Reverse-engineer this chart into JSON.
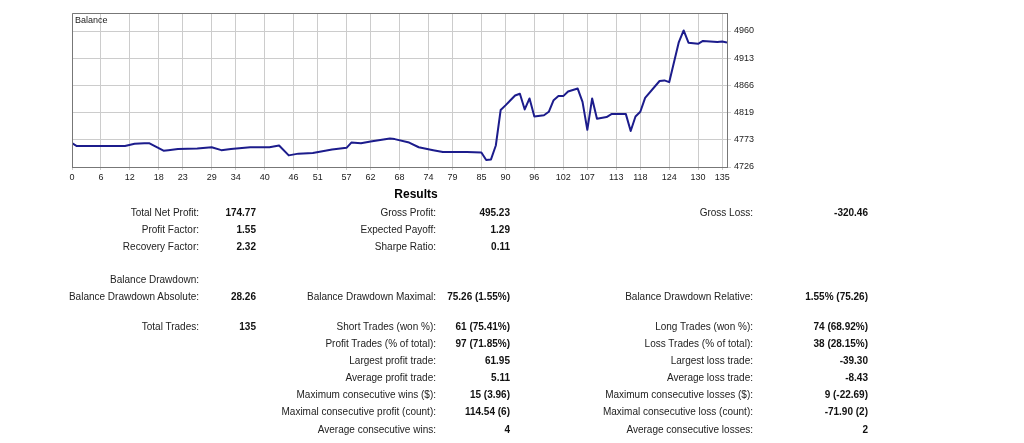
{
  "chart_data": [
    {
      "type": "line",
      "title": "Balance",
      "color": "#1c1c8c",
      "marker": "none",
      "line_style": "solid",
      "grid": true,
      "legend": false,
      "x": [
        0,
        1,
        11,
        13,
        15,
        16,
        19,
        20,
        22,
        26,
        29,
        31,
        33,
        37,
        41,
        43,
        45,
        47,
        50,
        54,
        57,
        58,
        60,
        62,
        66,
        67,
        70,
        72,
        75,
        77,
        82,
        85,
        86,
        87,
        88,
        89,
        90,
        92,
        93,
        94,
        95,
        96,
        98,
        99,
        100,
        101,
        102,
        103,
        105,
        106,
        107,
        108,
        109,
        111,
        112,
        115,
        116,
        117,
        118,
        119,
        122,
        123,
        124,
        126,
        127,
        128,
        130,
        131,
        134,
        135,
        136
      ],
      "values": [
        4767,
        4762,
        4762,
        4766,
        4767,
        4767,
        4754,
        4755,
        4757,
        4758,
        4760,
        4755,
        4757,
        4760,
        4760,
        4763,
        4746,
        4749,
        4750,
        4756,
        4759,
        4768,
        4767,
        4770,
        4775,
        4774,
        4768,
        4760,
        4755,
        4752,
        4752,
        4751,
        4738,
        4739,
        4763,
        4824,
        4832,
        4849,
        4852,
        4825,
        4844,
        4813,
        4815,
        4821,
        4841,
        4848,
        4848,
        4856,
        4861,
        4838,
        4790,
        4844,
        4809,
        4812,
        4817,
        4817,
        4788,
        4813,
        4821,
        4845,
        4874,
        4875,
        4872,
        4941,
        4961,
        4940,
        4938,
        4943,
        4941,
        4942,
        4940
      ],
      "xlim": [
        0,
        136
      ],
      "xticks": [
        0,
        6,
        12,
        18,
        23,
        29,
        34,
        40,
        46,
        51,
        57,
        62,
        68,
        74,
        79,
        85,
        90,
        96,
        102,
        107,
        113,
        118,
        124,
        130,
        135
      ],
      "ylim": [
        4726,
        4991
      ],
      "yticks": [
        4726,
        4773,
        4819,
        4866,
        4913,
        4960
      ]
    },
    {
      "type": "other",
      "title": "Results",
      "annotations": [
        "Total Net Profit:",
        "174.77",
        "Gross Profit:",
        "495.23",
        "Gross Loss:",
        "-320.46",
        "Profit Factor:",
        "1.55",
        "Expected Payoff:",
        "1.29",
        "Recovery Factor:",
        "2.32",
        "Sharpe Ratio:",
        "0.11",
        "Balance Drawdown:",
        "Balance Drawdown Absolute:",
        "28.26",
        "Balance Drawdown Maximal:",
        "75.26 (1.55%)",
        "Balance Drawdown Relative:",
        "1.55% (75.26)",
        "Total Trades:",
        "135",
        "Short Trades (won %):",
        "61 (75.41%)",
        "Long Trades (won %):",
        "74 (68.92%)",
        "Profit Trades (% of total):",
        "97 (71.85%)",
        "Loss Trades (% of total):",
        "38 (28.15%)",
        "Largest profit trade:",
        "61.95",
        "Largest loss trade:",
        "-39.30",
        "Average profit trade:",
        "5.11",
        "Average loss trade:",
        "-8.43",
        "Maximum consecutive wins ($):",
        "15 (3.96)",
        "Maximum consecutive losses ($):",
        "9 (-22.69)",
        "Maximal consecutive profit (count):",
        "114.54 (6)",
        "Maximal consecutive loss (count):",
        "-71.90 (2)",
        "Average consecutive wins:",
        "4",
        "Average consecutive losses:",
        "2"
      ]
    }
  ]
}
